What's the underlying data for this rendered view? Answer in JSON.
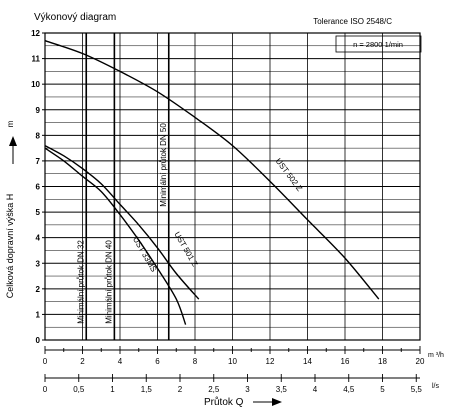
{
  "chart_data": {
    "type": "line",
    "title": "Výkonový diagram",
    "tolerance": "Tolerance ISO 2548/C",
    "speed_note": "n = 2800 1/min",
    "ylabel": "Celková dopravní výška  H",
    "ylabel_unit": "m",
    "xlabel": "Průtok Q",
    "x_unit_primary": "m ³/h",
    "x_unit_secondary": "l/s",
    "xlim": [
      0,
      20
    ],
    "ylim": [
      0,
      12
    ],
    "grid": true,
    "x_ticks": [
      "0",
      "2",
      "4",
      "6",
      "8",
      "10",
      "12",
      "14",
      "16",
      "18",
      "20"
    ],
    "y_ticks": [
      "0",
      "1",
      "2",
      "3",
      "4",
      "5",
      "6",
      "7",
      "8",
      "9",
      "10",
      "11",
      "12"
    ],
    "x2_ticks": [
      {
        "ls": 0,
        "label": "0"
      },
      {
        "ls": 0.5,
        "label": "0,5"
      },
      {
        "ls": 1,
        "label": "1"
      },
      {
        "ls": 1.5,
        "label": "1,5"
      },
      {
        "ls": 2,
        "label": "2"
      },
      {
        "ls": 2.5,
        "label": "2,5"
      },
      {
        "ls": 3,
        "label": "3"
      },
      {
        "ls": 3.5,
        "label": "3,5"
      },
      {
        "ls": 4,
        "label": "4"
      },
      {
        "ls": 4.5,
        "label": "4,5"
      },
      {
        "ls": 5,
        "label": "5"
      },
      {
        "ls": 5.5,
        "label": "5,5"
      }
    ],
    "min_flow_lines": [
      {
        "label": "Minimální průtok DN 32",
        "x": 2.2
      },
      {
        "label": "Minimální průtok DN 40",
        "x": 3.7
      },
      {
        "label": "Minimální průtok DN 50",
        "x": 6.6
      }
    ],
    "series": [
      {
        "name": "UST 502 Z",
        "x": [
          0,
          2,
          4,
          6,
          8,
          10,
          12,
          14,
          16,
          17.8
        ],
        "y": [
          11.7,
          11.2,
          10.5,
          9.7,
          8.7,
          7.6,
          6.2,
          4.7,
          3.2,
          1.6
        ]
      },
      {
        "name": "UST 501 Z",
        "x": [
          0,
          1,
          2,
          3,
          4,
          5,
          6,
          7,
          8.2
        ],
        "y": [
          7.6,
          7.2,
          6.7,
          6.1,
          5.3,
          4.5,
          3.6,
          2.6,
          1.6
        ]
      },
      {
        "name": "UST 33MS",
        "x": [
          0,
          1,
          2,
          3,
          4,
          5,
          6,
          7,
          7.5
        ],
        "y": [
          7.5,
          7.0,
          6.4,
          5.8,
          4.9,
          3.9,
          2.8,
          1.6,
          0.6
        ]
      }
    ]
  }
}
